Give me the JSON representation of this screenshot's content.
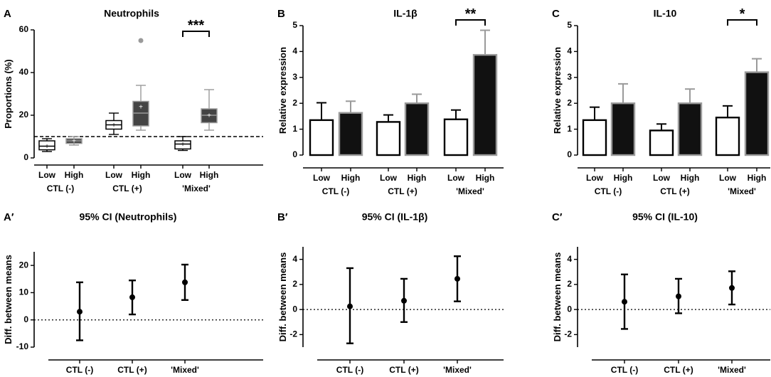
{
  "chart_data": [
    {
      "id": "A",
      "panel_label": "A",
      "type": "box",
      "title": "Neutrophils",
      "ylabel": "Proportions (%)",
      "ylim": [
        0,
        60
      ],
      "yticks": [
        0,
        20,
        40,
        60
      ],
      "reference_line": 10,
      "groups": [
        "CTL (-)",
        "CTL (+)",
        "'Mixed'"
      ],
      "levels": [
        "Low",
        "High"
      ],
      "boxes": [
        {
          "group": "CTL (-)",
          "level": "Low",
          "min": 3,
          "q1": 3.8,
          "median": 5.5,
          "q3": 8,
          "max": 9,
          "mean": 5.5
        },
        {
          "group": "CTL (-)",
          "level": "High",
          "min": 6,
          "q1": 6.8,
          "median": 8,
          "q3": 9,
          "max": 10,
          "mean": 8
        },
        {
          "group": "CTL (+)",
          "level": "Low",
          "min": 11,
          "q1": 13.5,
          "median": 15.5,
          "q3": 17.5,
          "max": 21,
          "mean": 15.5
        },
        {
          "group": "CTL (+)",
          "level": "High",
          "min": 13,
          "q1": 15,
          "median": 21,
          "q3": 26.5,
          "max": 34,
          "mean": 24,
          "outlier": 55
        },
        {
          "group": "'Mixed'",
          "level": "Low",
          "min": 3.5,
          "q1": 4.2,
          "median": 6.5,
          "q3": 8,
          "max": 10,
          "mean": 6.5
        },
        {
          "group": "'Mixed'",
          "level": "High",
          "min": 13,
          "q1": 16.5,
          "median": 20,
          "q3": 23,
          "max": 32,
          "mean": 20
        }
      ],
      "significance": [
        {
          "group": "'Mixed'",
          "label": "***"
        }
      ]
    },
    {
      "id": "B",
      "panel_label": "B",
      "type": "bar",
      "title": "IL-1β",
      "ylabel": "Relative expression",
      "ylim": [
        0,
        5
      ],
      "yticks": [
        0,
        1,
        2,
        3,
        4,
        5
      ],
      "groups": [
        "CTL (-)",
        "CTL (+)",
        "'Mixed'"
      ],
      "levels": [
        "Low",
        "High"
      ],
      "bars": [
        {
          "group": "CTL (-)",
          "level": "Low",
          "value": 1.35,
          "err": 0.67
        },
        {
          "group": "CTL (-)",
          "level": "High",
          "value": 1.63,
          "err": 0.45
        },
        {
          "group": "CTL (+)",
          "level": "Low",
          "value": 1.28,
          "err": 0.27
        },
        {
          "group": "CTL (+)",
          "level": "High",
          "value": 2.0,
          "err": 0.35
        },
        {
          "group": "'Mixed'",
          "level": "Low",
          "value": 1.38,
          "err": 0.36
        },
        {
          "group": "'Mixed'",
          "level": "High",
          "value": 3.87,
          "err": 0.95
        }
      ],
      "significance": [
        {
          "group": "'Mixed'",
          "label": "**"
        }
      ]
    },
    {
      "id": "C",
      "panel_label": "C",
      "type": "bar",
      "title": "IL-10",
      "ylabel": "Relative expression",
      "ylim": [
        0,
        5
      ],
      "yticks": [
        0,
        1,
        2,
        3,
        4,
        5
      ],
      "groups": [
        "CTL (-)",
        "CTL (+)",
        "'Mixed'"
      ],
      "levels": [
        "Low",
        "High"
      ],
      "bars": [
        {
          "group": "CTL (-)",
          "level": "Low",
          "value": 1.35,
          "err": 0.5
        },
        {
          "group": "CTL (-)",
          "level": "High",
          "value": 2.0,
          "err": 0.75
        },
        {
          "group": "CTL (+)",
          "level": "Low",
          "value": 0.95,
          "err": 0.25
        },
        {
          "group": "CTL (+)",
          "level": "High",
          "value": 2.0,
          "err": 0.55
        },
        {
          "group": "'Mixed'",
          "level": "Low",
          "value": 1.45,
          "err": 0.45
        },
        {
          "group": "'Mixed'",
          "level": "High",
          "value": 3.2,
          "err": 0.52
        }
      ],
      "significance": [
        {
          "group": "'Mixed'",
          "label": "*"
        }
      ]
    },
    {
      "id": "A2",
      "panel_label": "A′",
      "type": "ci",
      "title": "95% CI (Neutrophils)",
      "ylabel": "Diff. between means",
      "ylim": [
        -10,
        25
      ],
      "yticks": [
        -10,
        0,
        10,
        20
      ],
      "categories": [
        "CTL (-)",
        "CTL (+)",
        "'Mixed'"
      ],
      "points": [
        {
          "mean": 3,
          "low": -7.5,
          "high": 13.8
        },
        {
          "mean": 8.3,
          "low": 2,
          "high": 14.5
        },
        {
          "mean": 13.8,
          "low": 7.3,
          "high": 20.3
        }
      ]
    },
    {
      "id": "B2",
      "panel_label": "B′",
      "type": "ci",
      "title": "95% CI (IL-1β)",
      "ylabel": "Diff. between means",
      "ylim": [
        -3,
        5
      ],
      "yticks": [
        -2,
        0,
        2,
        4
      ],
      "categories": [
        "CTL (-)",
        "CTL (+)",
        "'Mixed'"
      ],
      "points": [
        {
          "mean": 0.25,
          "low": -2.7,
          "high": 3.3
        },
        {
          "mean": 0.7,
          "low": -1.0,
          "high": 2.45
        },
        {
          "mean": 2.45,
          "low": 0.65,
          "high": 4.25
        }
      ]
    },
    {
      "id": "C2",
      "panel_label": "C′",
      "type": "ci",
      "title": "95% CI (IL-10)",
      "ylabel": "Diff. between means",
      "ylim": [
        -3,
        5
      ],
      "yticks": [
        -2,
        0,
        2,
        4
      ],
      "categories": [
        "CTL (-)",
        "CTL (+)",
        "'Mixed'"
      ],
      "points": [
        {
          "mean": 0.62,
          "low": -1.55,
          "high": 2.8
        },
        {
          "mean": 1.05,
          "low": -0.3,
          "high": 2.45
        },
        {
          "mean": 1.72,
          "low": 0.4,
          "high": 3.05
        }
      ]
    }
  ],
  "colors": {
    "axis": "#000000",
    "grey": "#9a9a9a",
    "dark_fill": "#111111",
    "box_dark": "#444444"
  }
}
